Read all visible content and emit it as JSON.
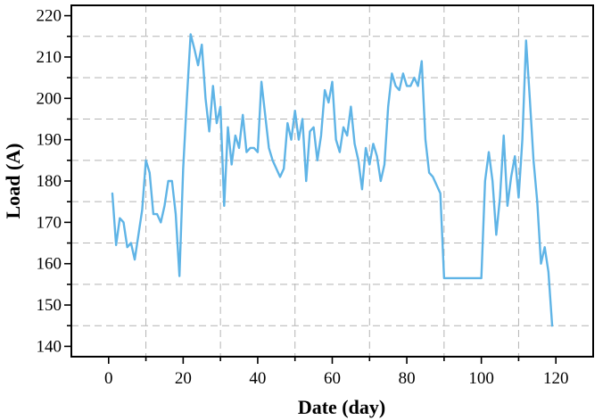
{
  "chart_data": {
    "type": "line",
    "xlabel": "Date (day)",
    "ylabel": "Load (A)",
    "xlim": [
      -10,
      130
    ],
    "ylim": [
      137.5,
      222.5
    ],
    "x_ticks": [
      0,
      20,
      40,
      60,
      80,
      100,
      120
    ],
    "y_ticks": [
      140,
      150,
      160,
      170,
      180,
      190,
      200,
      210,
      220
    ],
    "x_grid": [
      10,
      30,
      50,
      70,
      90,
      110
    ],
    "y_grid": [
      145,
      155,
      165,
      175,
      185,
      195,
      205,
      215
    ],
    "grid": true,
    "line_color": "#5fb4e6",
    "series": [
      {
        "x": [
          1,
          2,
          3,
          4,
          5,
          6,
          7,
          8,
          9,
          10,
          11,
          12,
          13,
          14,
          15,
          16,
          17,
          18,
          19,
          20,
          21,
          22,
          23,
          24,
          25,
          26,
          27,
          28,
          29,
          30,
          31,
          32,
          33,
          34,
          35,
          36,
          37,
          38,
          39,
          40,
          41,
          42,
          43,
          44,
          45,
          46,
          47,
          48,
          49,
          50,
          51,
          52,
          53,
          54,
          55,
          56,
          57,
          58,
          59,
          60,
          61,
          62,
          63,
          64,
          65,
          66,
          67,
          68,
          69,
          70,
          71,
          72,
          73,
          74,
          75,
          76,
          77,
          78,
          79,
          80,
          81,
          82,
          83,
          84,
          85,
          86,
          87,
          88,
          89,
          90,
          91,
          92,
          93,
          94,
          95,
          96,
          97,
          98,
          99,
          100,
          101,
          102,
          103,
          104,
          105,
          106,
          107,
          108,
          109,
          110,
          111,
          112,
          113,
          114,
          115,
          116,
          117,
          118,
          119
        ],
        "y": [
          177,
          164.5,
          171,
          170,
          164,
          165,
          161,
          167,
          173,
          185,
          182,
          172,
          172,
          170,
          174,
          180,
          180,
          172,
          157,
          183,
          200,
          215.5,
          212,
          208,
          213,
          200,
          192,
          203,
          194,
          198,
          174,
          193,
          184,
          191,
          188,
          196,
          187,
          188,
          188,
          187,
          204,
          196,
          188,
          185,
          183,
          181,
          183,
          194,
          190,
          197,
          190,
          195,
          180,
          192,
          193,
          185,
          191,
          202,
          199,
          204,
          190,
          187,
          193,
          191,
          198,
          189,
          185,
          178,
          188,
          184,
          189,
          186,
          180,
          184,
          198,
          206,
          203,
          202,
          206,
          203,
          203,
          205,
          203,
          209,
          190,
          182,
          181,
          179,
          177,
          156.5,
          156.5,
          156.5,
          156.5,
          156.5,
          156.5,
          156.5,
          156.5,
          156.5,
          156.5,
          156.5,
          180,
          187,
          180,
          167,
          176,
          191,
          174,
          181,
          186,
          176,
          190,
          214,
          200,
          185,
          175,
          160,
          164,
          158,
          145
        ]
      }
    ]
  }
}
